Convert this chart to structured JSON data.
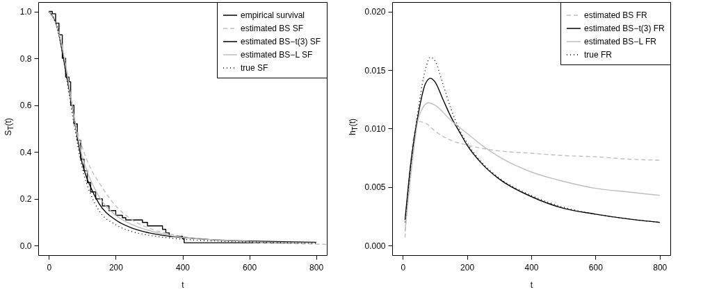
{
  "chart_data": [
    {
      "type": "line",
      "xlabel": "t",
      "ylabel": "S$_{T}$(t)",
      "xlim": [
        -32,
        832
      ],
      "ylim": [
        -0.04,
        1.04
      ],
      "xticks": [
        0,
        200,
        400,
        600,
        800
      ],
      "yticks": [
        {
          "value": 0,
          "label": "0.0"
        },
        0.2,
        0.4,
        0.6,
        0.8,
        {
          "value": 1,
          "label": "1.0"
        }
      ],
      "legend": "top right",
      "series": [
        {
          "name": "empirical survival",
          "type": "step",
          "color": "#000000",
          "line_style": "solid",
          "x": [
            0,
            10,
            20,
            30,
            40,
            50,
            60,
            65,
            75,
            85,
            95,
            105,
            115,
            125,
            140,
            160,
            180,
            200,
            220,
            230,
            280,
            295,
            340,
            350,
            360,
            400,
            405,
            800
          ],
          "values": [
            1.0,
            0.99,
            0.95,
            0.9,
            0.8,
            0.72,
            0.7,
            0.6,
            0.52,
            0.45,
            0.37,
            0.32,
            0.27,
            0.23,
            0.2,
            0.17,
            0.15,
            0.13,
            0.12,
            0.11,
            0.1,
            0.085,
            0.07,
            0.055,
            0.04,
            0.03,
            0.013,
            0.013
          ]
        },
        {
          "name": "estimated BS SF",
          "color": "#bebebe",
          "line_style": "dashed",
          "x": [
            0,
            25,
            50,
            75,
            100,
            125,
            150,
            200,
            250,
            300,
            400,
            500,
            600,
            700,
            800,
            832
          ],
          "values": [
            1.0,
            0.93,
            0.78,
            0.55,
            0.42,
            0.33,
            0.27,
            0.17,
            0.11,
            0.075,
            0.04,
            0.025,
            0.015,
            0.01,
            0.007,
            0.006
          ]
        },
        {
          "name": "estimated BS−t(3) SF",
          "color": "#000000",
          "line_style": "solid",
          "x": [
            0,
            25,
            50,
            75,
            100,
            125,
            150,
            200,
            250,
            300,
            400,
            500,
            600,
            700,
            800
          ],
          "values": [
            1.0,
            0.93,
            0.75,
            0.55,
            0.35,
            0.25,
            0.18,
            0.11,
            0.075,
            0.055,
            0.035,
            0.025,
            0.02,
            0.017,
            0.015
          ]
        },
        {
          "name": "estimated BS−L SF",
          "color": "#bebebe",
          "line_style": "solid",
          "x": [
            0,
            25,
            50,
            75,
            100,
            125,
            150,
            200,
            250,
            300,
            400,
            500,
            600,
            700,
            800
          ],
          "values": [
            1.0,
            0.93,
            0.77,
            0.55,
            0.38,
            0.28,
            0.21,
            0.13,
            0.09,
            0.065,
            0.035,
            0.025,
            0.018,
            0.014,
            0.012
          ]
        },
        {
          "name": "true SF",
          "color": "#000000",
          "line_style": "dotted",
          "x": [
            0,
            25,
            50,
            75,
            100,
            125,
            150,
            200,
            250,
            300,
            400,
            500,
            600,
            700,
            800
          ],
          "values": [
            1.0,
            0.93,
            0.74,
            0.52,
            0.33,
            0.22,
            0.15,
            0.09,
            0.06,
            0.045,
            0.028,
            0.02,
            0.016,
            0.013,
            0.011
          ]
        }
      ]
    },
    {
      "type": "line",
      "xlabel": "t",
      "ylabel": "h$_{T}$(t)",
      "xlim": [
        -33,
        833
      ],
      "ylim": [
        -0.0008,
        0.0208
      ],
      "xticks": [
        0,
        200,
        400,
        600,
        800
      ],
      "yticks": [
        {
          "value": 0,
          "label": "0.000"
        },
        {
          "value": 0.005,
          "label": "0.005"
        },
        {
          "value": 0.01,
          "label": "0.010"
        },
        {
          "value": 0.015,
          "label": "0.015"
        },
        {
          "value": 0.02,
          "label": "0.020"
        }
      ],
      "legend": "top right",
      "series": [
        {
          "name": "estimated BS FR",
          "color": "#bebebe",
          "line_style": "dashed",
          "x": [
            7,
            20,
            35,
            50,
            75,
            100,
            150,
            200,
            250,
            300,
            400,
            500,
            600,
            700,
            800
          ],
          "values": [
            0.0007,
            0.006,
            0.0095,
            0.0106,
            0.0104,
            0.0098,
            0.009,
            0.0086,
            0.0083,
            0.0081,
            0.0079,
            0.0077,
            0.0076,
            0.0074,
            0.0073
          ]
        },
        {
          "name": "estimated BS−t(3) FR",
          "color": "#000000",
          "line_style": "solid",
          "x": [
            7,
            25,
            50,
            70,
            86,
            100,
            125,
            150,
            175,
            200,
            250,
            300,
            400,
            500,
            600,
            700,
            800
          ],
          "values": [
            0.0022,
            0.007,
            0.0115,
            0.0138,
            0.0143,
            0.014,
            0.0125,
            0.011,
            0.0098,
            0.0086,
            0.0069,
            0.0057,
            0.0042,
            0.0032,
            0.0027,
            0.0023,
            0.002
          ]
        },
        {
          "name": "estimated BS−L FR",
          "color": "#bebebe",
          "line_style": "solid",
          "x": [
            7,
            25,
            50,
            80,
            100,
            150,
            200,
            250,
            300,
            400,
            500,
            600,
            700,
            800
          ],
          "values": [
            0.0012,
            0.006,
            0.011,
            0.0122,
            0.012,
            0.0107,
            0.0096,
            0.0085,
            0.0076,
            0.0063,
            0.0055,
            0.0049,
            0.0046,
            0.0043
          ]
        },
        {
          "name": "true FR",
          "color": "#000000",
          "line_style": "dotted",
          "x": [
            7,
            25,
            50,
            70,
            86,
            100,
            125,
            150,
            175,
            200,
            250,
            300,
            400,
            500,
            600,
            700,
            800
          ],
          "values": [
            0.002,
            0.0068,
            0.012,
            0.015,
            0.0161,
            0.0158,
            0.0138,
            0.0117,
            0.01,
            0.0088,
            0.007,
            0.0058,
            0.0043,
            0.0033,
            0.0027,
            0.0023,
            0.002
          ]
        }
      ]
    }
  ]
}
